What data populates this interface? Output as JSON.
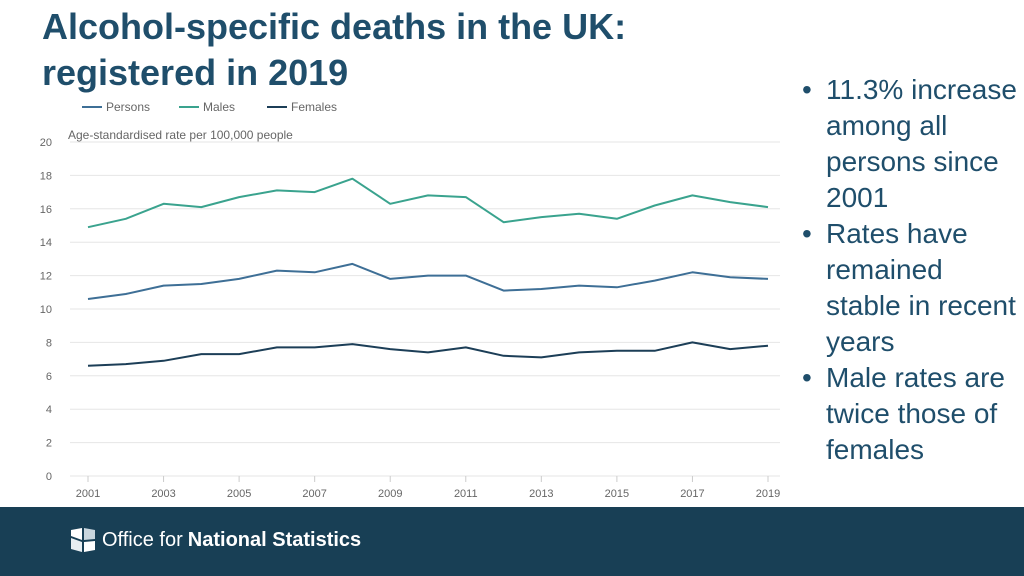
{
  "slide": {
    "title_line1": "Alcohol-specific deaths in the UK:",
    "title_line2": "registered in 2019",
    "bullets": [
      "11.3% increase among all persons since 2001",
      "Rates have remained stable in recent years",
      "Male rates are twice those of females"
    ]
  },
  "footer": {
    "org_light": "Office for",
    "org_bold": "National Statistics"
  },
  "colors": {
    "title": "#1f4e6b",
    "footer_bg": "#183f55",
    "persons": "#3e6f96",
    "males": "#3aa38e",
    "females": "#1c3e57"
  },
  "chart_data": {
    "type": "line",
    "title": "",
    "ylabel": "Age-standardised rate per 100,000 people",
    "xlabel": "",
    "x": [
      2001,
      2002,
      2003,
      2004,
      2005,
      2006,
      2007,
      2008,
      2009,
      2010,
      2011,
      2012,
      2013,
      2014,
      2015,
      2016,
      2017,
      2018,
      2019
    ],
    "xticks": [
      "2001",
      "2003",
      "2005",
      "2007",
      "2009",
      "2011",
      "2013",
      "2015",
      "2017",
      "2019"
    ],
    "yticks": [
      "0",
      "2",
      "4",
      "6",
      "8",
      "10",
      "12",
      "14",
      "16",
      "18",
      "20"
    ],
    "ylim": [
      0,
      20
    ],
    "grid": true,
    "legend": "top-left",
    "series": [
      {
        "name": "Persons",
        "color": "#3e6f96",
        "values": [
          10.6,
          10.9,
          11.4,
          11.5,
          11.8,
          12.3,
          12.2,
          12.7,
          11.8,
          12.0,
          12.0,
          11.1,
          11.2,
          11.4,
          11.3,
          11.7,
          12.2,
          11.9,
          11.8
        ]
      },
      {
        "name": "Males",
        "color": "#3aa38e",
        "values": [
          14.9,
          15.4,
          16.3,
          16.1,
          16.7,
          17.1,
          17.0,
          17.8,
          16.3,
          16.8,
          16.7,
          15.2,
          15.5,
          15.7,
          15.4,
          16.2,
          16.8,
          16.4,
          16.1
        ]
      },
      {
        "name": "Females",
        "color": "#1c3e57",
        "values": [
          6.6,
          6.7,
          6.9,
          7.3,
          7.3,
          7.7,
          7.7,
          7.9,
          7.6,
          7.4,
          7.7,
          7.2,
          7.1,
          7.4,
          7.5,
          7.5,
          8.0,
          7.6,
          7.8
        ]
      }
    ]
  }
}
